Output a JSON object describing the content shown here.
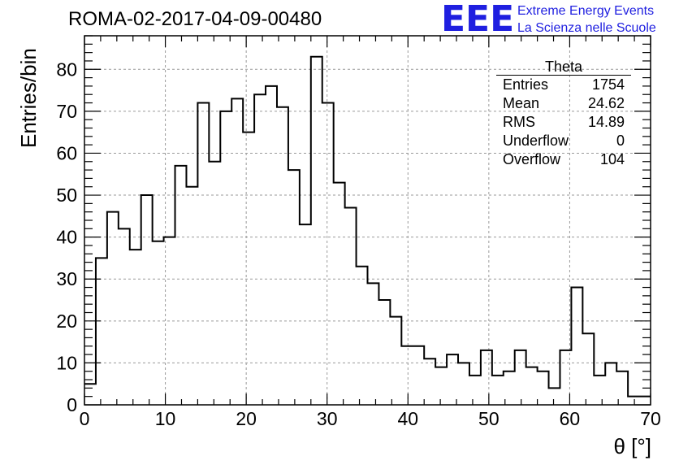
{
  "title": "ROMA-02-2017-04-09-00480",
  "logo": {
    "mark": "EEE",
    "line1": "Extreme Energy Events",
    "line2": "La Scienza nelle Scuole",
    "color": "#1f1fe0"
  },
  "stats": {
    "title": "Theta",
    "rows": [
      {
        "label": "Entries",
        "value": "1754"
      },
      {
        "label": "Mean",
        "value": "24.62"
      },
      {
        "label": "RMS",
        "value": "14.89"
      },
      {
        "label": "Underflow",
        "value": "0"
      },
      {
        "label": "Overflow",
        "value": "104"
      }
    ]
  },
  "chart_data": {
    "type": "bar",
    "style": "step-histogram",
    "title": "ROMA-02-2017-04-09-00480",
    "xlabel": "θ [°]",
    "ylabel": "Entries/bin",
    "xlim": [
      0,
      70
    ],
    "ylim": [
      0,
      88
    ],
    "grid": true,
    "bin_width": 1.4,
    "xticks": [
      0,
      10,
      20,
      30,
      40,
      50,
      60,
      70
    ],
    "yticks": [
      0,
      10,
      20,
      30,
      40,
      50,
      60,
      70,
      80
    ],
    "values": [
      5,
      35,
      46,
      42,
      37,
      50,
      39,
      40,
      57,
      52,
      72,
      58,
      70,
      73,
      65,
      74,
      76,
      71,
      56,
      43,
      83,
      72,
      53,
      47,
      33,
      29,
      25,
      21,
      14,
      14,
      11,
      9,
      12,
      10,
      7,
      13,
      7,
      8,
      13,
      9,
      8,
      4,
      13,
      28,
      17,
      7,
      10,
      8,
      2,
      2
    ]
  }
}
